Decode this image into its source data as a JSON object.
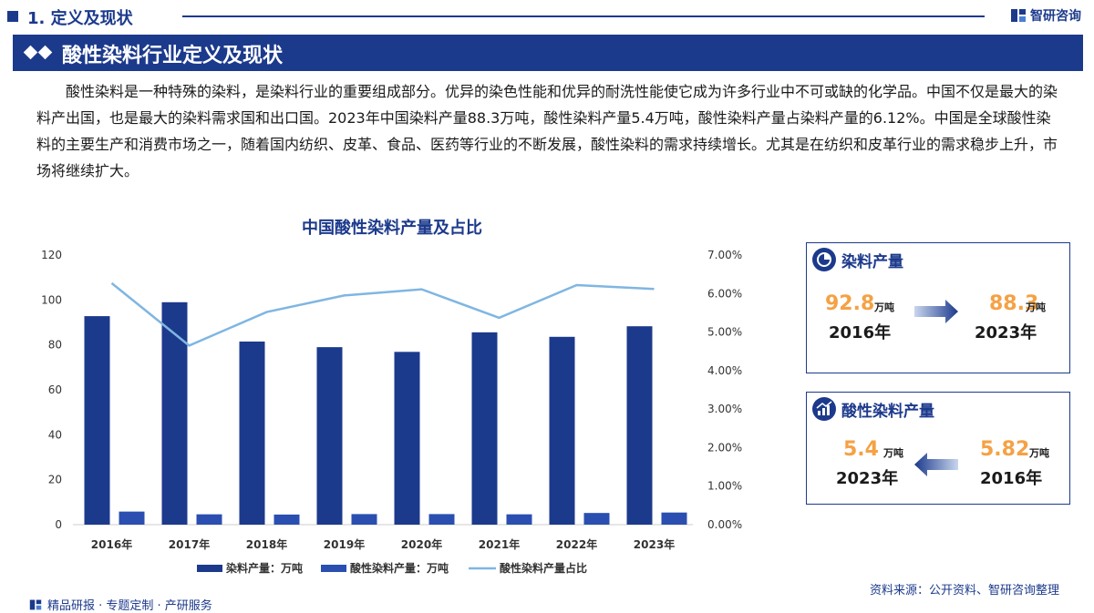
{
  "header": {
    "section_title": "1. 定义及现状",
    "brand": "智研咨询",
    "banner_title": "酸性染料行业定义及现状"
  },
  "paragraph": "酸性染料是一种特殊的染料，是染料行业的重要组成部分。优异的染色性能和优异的耐洗性能使它成为许多行业中不可或缺的化学品。中国不仅是最大的染料产出国，也是最大的染料需求国和出口国。2023年中国染料产量88.3万吨，酸性染料产量5.4万吨，酸性染料产量占染料产量的6.12%。中国是全球酸性染料的主要生产和消费市场之一，随着国内纺织、皮革、食品、医药等行业的不断发展，酸性染料的需求持续增长。尤其是在纺织和皮革行业的需求稳步上升，市场将继续扩大。",
  "colors": {
    "primary": "#1c3a8c",
    "bar1": "#1c3a8c",
    "bar2": "#2a4fb0",
    "line": "#7fb6e2",
    "accent": "#f5a144"
  },
  "chart_data": {
    "type": "bar",
    "title": "中国酸性染料产量及占比",
    "categories": [
      "2016年",
      "2017年",
      "2018年",
      "2019年",
      "2020年",
      "2021年",
      "2022年",
      "2023年"
    ],
    "series": [
      {
        "name": "染料产量：万吨",
        "type": "bar",
        "axis": "left",
        "values": [
          92.8,
          99.0,
          81.5,
          79.0,
          76.9,
          85.6,
          83.6,
          88.3
        ]
      },
      {
        "name": "酸性染料产量：万吨",
        "type": "bar",
        "axis": "left",
        "values": [
          5.82,
          4.6,
          4.5,
          4.7,
          4.7,
          4.6,
          5.2,
          5.4
        ]
      },
      {
        "name": "酸性染料产量占比",
        "type": "line",
        "axis": "right",
        "values": [
          6.27,
          4.65,
          5.52,
          5.95,
          6.11,
          5.37,
          6.22,
          6.12
        ]
      }
    ],
    "ylim_left": [
      0,
      120
    ],
    "yticks_left": [
      "0",
      "20",
      "40",
      "60",
      "80",
      "100",
      "120"
    ],
    "ylim_right": [
      0,
      7
    ],
    "yticks_right": [
      "0.00%",
      "1.00%",
      "2.00%",
      "3.00%",
      "4.00%",
      "5.00%",
      "6.00%",
      "7.00%"
    ],
    "legend_position": "bottom",
    "grid": false
  },
  "cards": {
    "dye": {
      "label": "染料产量",
      "left_value": "92.8",
      "left_unit": "万吨",
      "left_year": "2016年",
      "right_value": "88.3",
      "right_unit": "万吨",
      "right_year": "2023年"
    },
    "acid": {
      "label": "酸性染料产量",
      "left_value": "5.4",
      "left_unit": "万吨",
      "left_year": "2023年",
      "right_value": "5.82",
      "right_unit": "万吨",
      "right_year": "2016年"
    }
  },
  "footer": {
    "source": "资料来源：公开资料、智研咨询整理",
    "slogan": "精品研报 · 专题定制 · 产研服务"
  },
  "icons": [
    "logo-icon",
    "pie-chart-icon",
    "bar-chart-icon",
    "arrow-right-icon",
    "arrow-left-icon"
  ]
}
